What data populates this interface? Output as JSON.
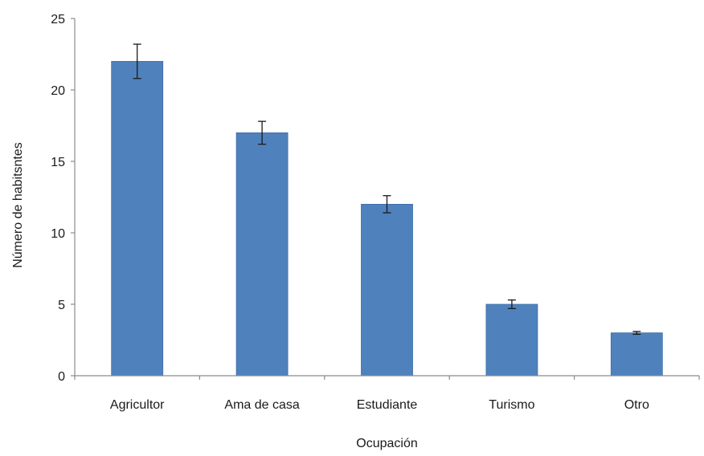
{
  "chart_data": {
    "type": "bar",
    "title": "",
    "xlabel": "Ocupación",
    "ylabel": "Número de habitsntes",
    "categories": [
      "Agricultor",
      "Ama de casa",
      "Estudiante",
      "Turismo",
      "Otro"
    ],
    "values": [
      22,
      17,
      12,
      5,
      3
    ],
    "errors": [
      1.2,
      0.8,
      0.6,
      0.3,
      0.1
    ],
    "ylim": [
      0,
      25
    ],
    "yticks": [
      "0",
      "5",
      "10",
      "15",
      "20",
      "25"
    ],
    "grid": false,
    "legend": "none",
    "bar_color": "#4f81bd",
    "bar_edge_color": "#3d6fa8",
    "error_bar_color": "#1a1a1a",
    "axis_color": "#8c8c8c"
  }
}
